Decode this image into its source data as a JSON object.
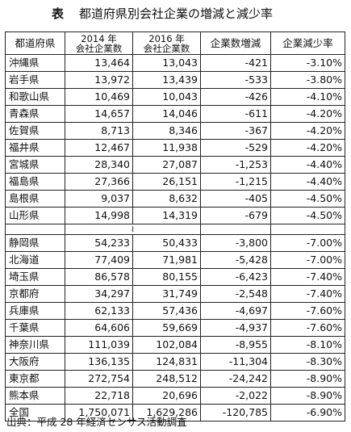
{
  "title": {
    "lead": "表",
    "text": "都道府県別会社企業の増減と減少率"
  },
  "headers": {
    "pref": "都道府県",
    "y2014_year": "2014 年",
    "y2014_sub": "会社企業数",
    "y2016_year": "2016 年",
    "y2016_sub": "会社企業数",
    "change": "企業数増減",
    "rate": "企業減少率"
  },
  "top_rows": [
    {
      "pref": "沖縄県",
      "y2014": "13,464",
      "y2016": "13,043",
      "change": "-421",
      "rate": "-3.10%"
    },
    {
      "pref": "岩手県",
      "y2014": "13,972",
      "y2016": "13,439",
      "change": "-533",
      "rate": "-3.80%"
    },
    {
      "pref": "和歌山県",
      "y2014": "10,469",
      "y2016": "10,043",
      "change": "-426",
      "rate": "-4.10%"
    },
    {
      "pref": "青森県",
      "y2014": "14,657",
      "y2016": "14,046",
      "change": "-611",
      "rate": "-4.20%"
    },
    {
      "pref": "佐賀県",
      "y2014": "8,713",
      "y2016": "8,346",
      "change": "-367",
      "rate": "-4.20%"
    },
    {
      "pref": "福井県",
      "y2014": "12,467",
      "y2016": "11,938",
      "change": "-529",
      "rate": "-4.20%"
    },
    {
      "pref": "宮城県",
      "y2014": "28,340",
      "y2016": "27,087",
      "change": "-1,253",
      "rate": "-4.40%"
    },
    {
      "pref": "福島県",
      "y2014": "27,366",
      "y2016": "26,151",
      "change": "-1,215",
      "rate": "-4.40%"
    },
    {
      "pref": "島根県",
      "y2014": "9,037",
      "y2016": "8,632",
      "change": "-405",
      "rate": "-4.50%"
    },
    {
      "pref": "山形県",
      "y2014": "14,998",
      "y2016": "14,319",
      "change": "-679",
      "rate": "-4.50%"
    }
  ],
  "gap_mark": "≀",
  "bottom_rows": [
    {
      "pref": "静岡県",
      "y2014": "54,233",
      "y2016": "50,433",
      "change": "-3,800",
      "rate": "-7.00%"
    },
    {
      "pref": "北海道",
      "y2014": "77,409",
      "y2016": "71,981",
      "change": "-5,428",
      "rate": "-7.00%"
    },
    {
      "pref": "埼玉県",
      "y2014": "86,578",
      "y2016": "80,155",
      "change": "-6,423",
      "rate": "-7.40%"
    },
    {
      "pref": "京都府",
      "y2014": "34,297",
      "y2016": "31,749",
      "change": "-2,548",
      "rate": "-7.40%"
    },
    {
      "pref": "兵庫県",
      "y2014": "62,133",
      "y2016": "57,436",
      "change": "-4,697",
      "rate": "-7.60%"
    },
    {
      "pref": "千葉県",
      "y2014": "64,606",
      "y2016": "59,669",
      "change": "-4,937",
      "rate": "-7.60%"
    },
    {
      "pref": "神奈川県",
      "y2014": "111,039",
      "y2016": "102,084",
      "change": "-8,955",
      "rate": "-8.10%"
    },
    {
      "pref": "大阪府",
      "y2014": "136,135",
      "y2016": "124,831",
      "change": "-11,304",
      "rate": "-8.30%"
    },
    {
      "pref": "東京都",
      "y2014": "272,754",
      "y2016": "248,512",
      "change": "-24,242",
      "rate": "-8.90%"
    },
    {
      "pref": "熊本県",
      "y2014": "22,718",
      "y2016": "20,696",
      "change": "-2,022",
      "rate": "-8.90%"
    },
    {
      "pref": "全国",
      "y2014": "1,750,071",
      "y2016": "1,629,286",
      "change": "-120,785",
      "rate": "-6.90%"
    }
  ],
  "source": "出典：平成 28 年経済センサス活動調査"
}
